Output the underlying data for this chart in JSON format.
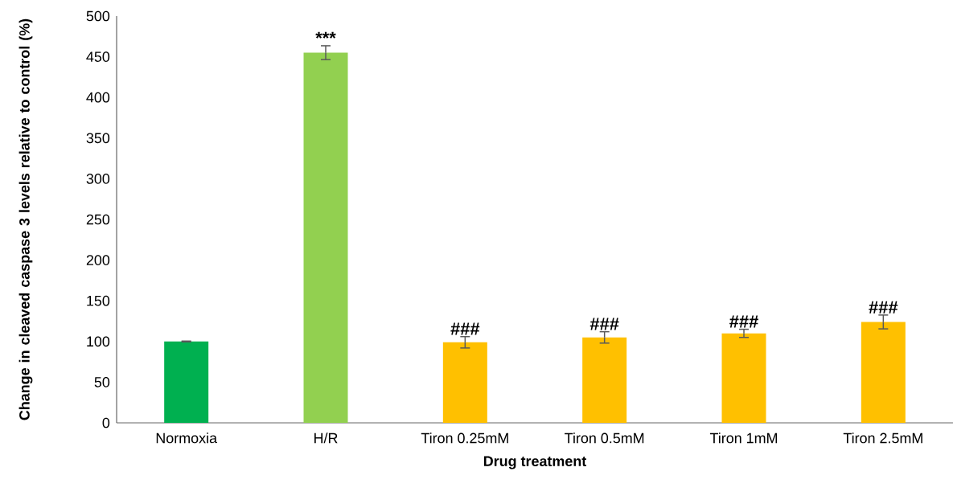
{
  "chart_data": {
    "type": "bar",
    "xlabel": "Drug treatment",
    "ylabel": "Change in cleaved caspase 3 levels relative to control (%)",
    "categories": [
      "Normoxia",
      "H/R",
      "Tiron 0.25mM",
      "Tiron 0.5mM",
      "Tiron 1mM",
      "Tiron 2.5mM"
    ],
    "values": [
      100,
      455,
      99,
      105,
      110,
      124
    ],
    "errors": [
      0.5,
      8.5,
      7,
      7,
      5,
      8.5
    ],
    "colors": [
      "#00b050",
      "#92d050",
      "#ffc000",
      "#ffc000",
      "#ffc000",
      "#ffc000"
    ],
    "ylim": [
      0,
      500
    ],
    "yticks": [
      0,
      50,
      100,
      150,
      200,
      250,
      300,
      350,
      400,
      450,
      500
    ],
    "annotations": [
      {
        "text": "***",
        "x": "H/R",
        "y": 455
      },
      {
        "text": "###",
        "x": "Tiron 0.25mM",
        "y": 99
      },
      {
        "text": "###",
        "x": "Tiron 0.5mM",
        "y": 105
      },
      {
        "text": "###",
        "x": "Tiron 1mM",
        "y": 110
      },
      {
        "text": "###",
        "x": "Tiron 2.5mM",
        "y": 124
      }
    ]
  }
}
